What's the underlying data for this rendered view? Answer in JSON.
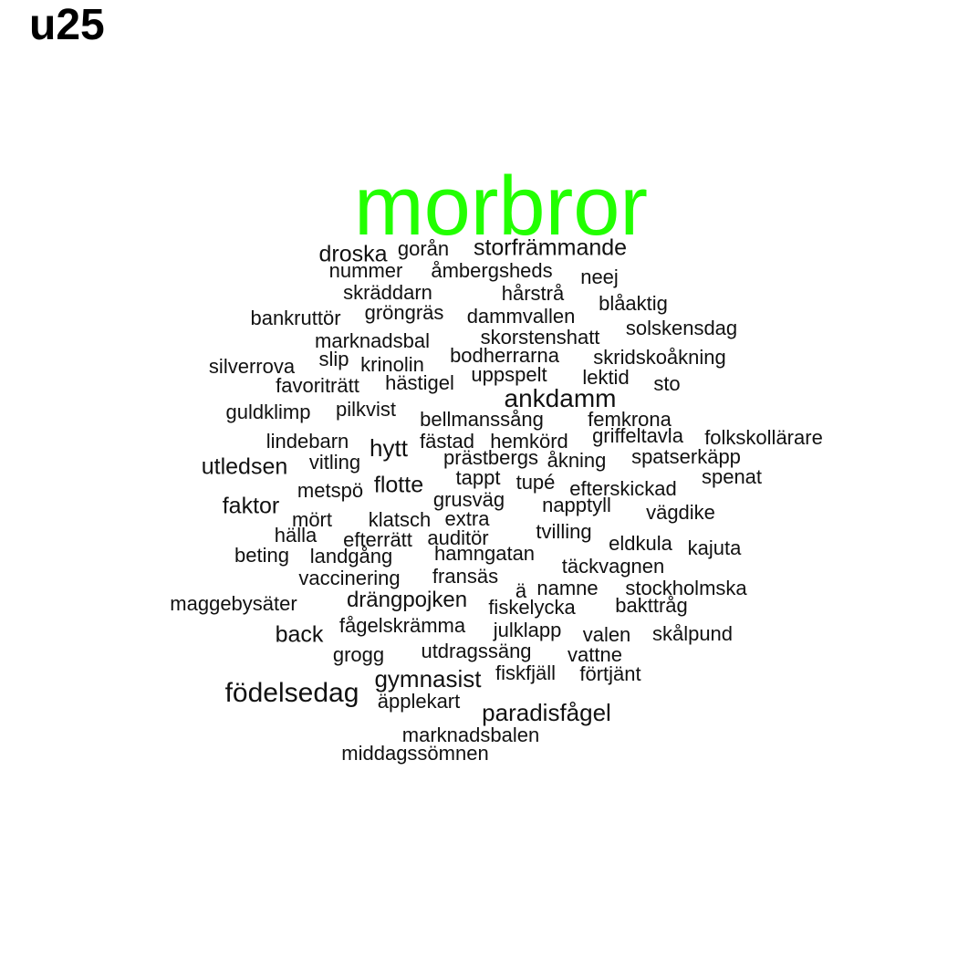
{
  "title": "u25",
  "colors": {
    "highlight": "#22ff00",
    "default": "#111111",
    "background": "#ffffff"
  },
  "words": [
    {
      "text": "morbror",
      "weight": 5.0,
      "highlight": true
    },
    {
      "text": "droska",
      "weight": 1.15
    },
    {
      "text": "gorån",
      "weight": 1.0
    },
    {
      "text": "storfrämmande",
      "weight": 1.15
    },
    {
      "text": "nummer",
      "weight": 1.0
    },
    {
      "text": "åmbergsheds",
      "weight": 1.0
    },
    {
      "text": "neej",
      "weight": 1.0
    },
    {
      "text": "skräddarn",
      "weight": 1.0
    },
    {
      "text": "hårstrå",
      "weight": 1.0
    },
    {
      "text": "blåaktig",
      "weight": 1.0
    },
    {
      "text": "bankruttör",
      "weight": 1.0
    },
    {
      "text": "gröngräs",
      "weight": 1.0
    },
    {
      "text": "dammvallen",
      "weight": 1.0
    },
    {
      "text": "solskensdag",
      "weight": 1.0
    },
    {
      "text": "marknadsbal",
      "weight": 1.0
    },
    {
      "text": "skorstenshatt",
      "weight": 1.0
    },
    {
      "text": "slip",
      "weight": 1.0
    },
    {
      "text": "bodherrarna",
      "weight": 1.0
    },
    {
      "text": "skridskoåkning",
      "weight": 1.0
    },
    {
      "text": "silverrova",
      "weight": 1.0
    },
    {
      "text": "krinolin",
      "weight": 1.0
    },
    {
      "text": "uppspelt",
      "weight": 1.0
    },
    {
      "text": "favoriträtt",
      "weight": 1.0
    },
    {
      "text": "hästigel",
      "weight": 1.0
    },
    {
      "text": "lektid",
      "weight": 1.0
    },
    {
      "text": "sto",
      "weight": 1.0
    },
    {
      "text": "ankdamm",
      "weight": 1.25
    },
    {
      "text": "guldklimp",
      "weight": 1.0
    },
    {
      "text": "pilkvist",
      "weight": 1.0
    },
    {
      "text": "bellmanssång",
      "weight": 1.0
    },
    {
      "text": "femkrona",
      "weight": 1.0
    },
    {
      "text": "griffeltavla",
      "weight": 1.0
    },
    {
      "text": "folkskollärare",
      "weight": 1.0
    },
    {
      "text": "lindebarn",
      "weight": 1.0
    },
    {
      "text": "hytt",
      "weight": 1.2
    },
    {
      "text": "fästad",
      "weight": 1.0
    },
    {
      "text": "hemkörd",
      "weight": 1.0
    },
    {
      "text": "prästbergs",
      "weight": 1.0
    },
    {
      "text": "åkning",
      "weight": 1.0
    },
    {
      "text": "spatserkäpp",
      "weight": 1.0
    },
    {
      "text": "utledsen",
      "weight": 1.15
    },
    {
      "text": "vitling",
      "weight": 1.0
    },
    {
      "text": "tappt",
      "weight": 1.0
    },
    {
      "text": "tupé",
      "weight": 1.0
    },
    {
      "text": "efterskickad",
      "weight": 1.0
    },
    {
      "text": "spenat",
      "weight": 1.0
    },
    {
      "text": "metspö",
      "weight": 1.0
    },
    {
      "text": "flotte",
      "weight": 1.15
    },
    {
      "text": "grusväg",
      "weight": 1.0
    },
    {
      "text": "napptyll",
      "weight": 1.0
    },
    {
      "text": "vägdike",
      "weight": 1.0
    },
    {
      "text": "faktor",
      "weight": 1.15
    },
    {
      "text": "mört",
      "weight": 1.0
    },
    {
      "text": "klatsch",
      "weight": 1.0
    },
    {
      "text": "extra",
      "weight": 1.0
    },
    {
      "text": "tvilling",
      "weight": 1.0
    },
    {
      "text": "hälla",
      "weight": 1.0
    },
    {
      "text": "efterrätt",
      "weight": 1.0
    },
    {
      "text": "auditör",
      "weight": 1.0
    },
    {
      "text": "eldkula",
      "weight": 1.0
    },
    {
      "text": "kajuta",
      "weight": 1.0
    },
    {
      "text": "beting",
      "weight": 1.0
    },
    {
      "text": "landgång",
      "weight": 1.0
    },
    {
      "text": "hamngatan",
      "weight": 1.0
    },
    {
      "text": "täckvagnen",
      "weight": 1.0
    },
    {
      "text": "vaccinering",
      "weight": 1.0
    },
    {
      "text": "fransäs",
      "weight": 1.0
    },
    {
      "text": "ä",
      "weight": 1.0
    },
    {
      "text": "namne",
      "weight": 1.0
    },
    {
      "text": "stockholmska",
      "weight": 1.0
    },
    {
      "text": "maggebysäter",
      "weight": 1.0
    },
    {
      "text": "drängpojken",
      "weight": 1.1
    },
    {
      "text": "fiskelycka",
      "weight": 1.0
    },
    {
      "text": "bakttråg",
      "weight": 1.0
    },
    {
      "text": "back",
      "weight": 1.15
    },
    {
      "text": "fågelskrämma",
      "weight": 1.0
    },
    {
      "text": "julklapp",
      "weight": 1.0
    },
    {
      "text": "valen",
      "weight": 1.0
    },
    {
      "text": "skålpund",
      "weight": 1.0
    },
    {
      "text": "grogg",
      "weight": 1.0
    },
    {
      "text": "utdragssäng",
      "weight": 1.0
    },
    {
      "text": "vattne",
      "weight": 1.0
    },
    {
      "text": "fiskfjäll",
      "weight": 1.0
    },
    {
      "text": "förtjänt",
      "weight": 1.0
    },
    {
      "text": "gymnasist",
      "weight": 1.2
    },
    {
      "text": "födelsedag",
      "weight": 1.35
    },
    {
      "text": "äpplekart",
      "weight": 1.0
    },
    {
      "text": "paradisfågel",
      "weight": 1.2
    },
    {
      "text": "marknadsbalen",
      "weight": 1.0
    },
    {
      "text": "middagssömnen",
      "weight": 1.0
    }
  ]
}
